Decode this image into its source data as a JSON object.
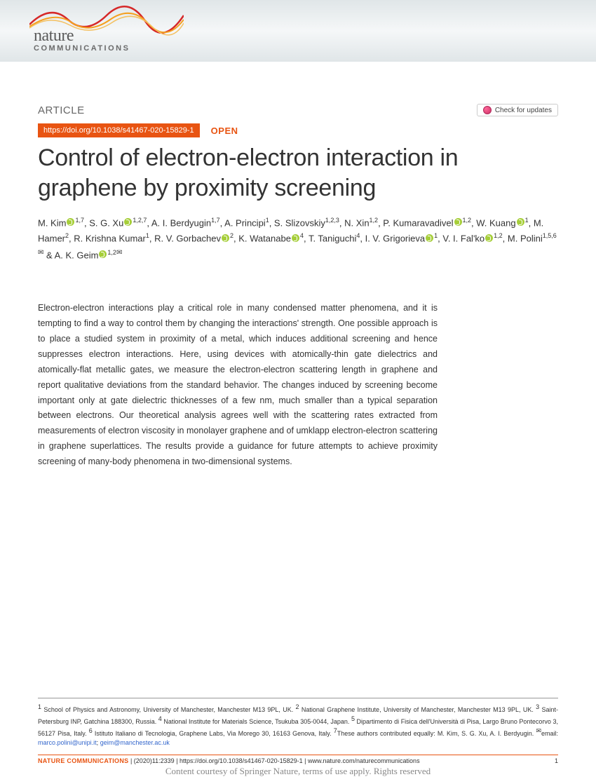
{
  "brand": {
    "name": "nature",
    "sub": "COMMUNICATIONS"
  },
  "header": {
    "article_label": "ARTICLE",
    "check_updates": "Check for updates",
    "doi": "https://doi.org/10.1038/s41467-020-15829-1",
    "open": "OPEN"
  },
  "title": "Control of electron-electron interaction in graphene by proximity screening",
  "authors_html": "M. Kim<orc/><sup>1,7</sup>, S. G. Xu<orc/><sup>1,2,7</sup>, A. I. Berdyugin<sup>1,7</sup>, A. Principi<sup>1</sup>, S. Slizovskiy<sup>1,2,3</sup>, N. Xin<sup>1,2</sup>, P. Kumaravadivel<orc/><sup>1,2</sup>, W. Kuang<orc/><sup>1</sup>, M. Hamer<sup>2</sup>, R. Krishna Kumar<sup>1</sup>, R. V. Gorbachev<orc/><sup>2</sup>, K. Watanabe<orc/><sup>4</sup>, T. Taniguchi<sup>4</sup>, I. V. Grigorieva<orc/><sup>1</sup>, V. I. Fal'ko<orc/><sup>1,2</sup>, M. Polini<sup>1,5,6</sup><mail/> & A. K. Geim<orc/><sup>1,2</sup><mail/>",
  "abstract": "Electron-electron interactions play a critical role in many condensed matter phenomena, and it is tempting to find a way to control them by changing the interactions' strength. One possible approach is to place a studied system in proximity of a metal, which induces additional screening and hence suppresses electron interactions. Here, using devices with atomically-thin gate dielectrics and atomically-flat metallic gates, we measure the electron-electron scattering length in graphene and report qualitative deviations from the standard behavior. The changes induced by screening become important only at gate dielectric thicknesses of a few nm, much smaller than a typical separation between electrons. Our theoretical analysis agrees well with the scattering rates extracted from measurements of electron viscosity in monolayer graphene and of umklapp electron-electron scattering in graphene superlattices. The results provide a guidance for future attempts to achieve proximity screening of many-body phenomena in two-dimensional systems.",
  "affiliations": "<sup>1</sup> School of Physics and Astronomy, University of Manchester, Manchester M13 9PL, UK. <sup>2</sup> National Graphene Institute, University of Manchester, Manchester M13 9PL, UK. <sup>3</sup> Saint-Petersburg INP, Gatchina 188300, Russia. <sup>4</sup> National Institute for Materials Science, Tsukuba 305-0044, Japan. <sup>5</sup> Dipartimento di Fisica dell'Università di Pisa, Largo Bruno Pontecorvo 3, 56127 Pisa, Italy. <sup>6</sup> Istituto Italiano di Tecnologia, Graphene Labs, Via Morego 30, 16163 Genova, Italy. <sup>7</sup>These authors contributed equally: M. Kim, S. G. Xu, A. I. Berdyugin. <sup>✉</sup>email: ",
  "emails": [
    "marco.polini@unipi.it",
    "geim@manchester.ac.uk"
  ],
  "footer": {
    "journal": "NATURE COMMUNICATIONS",
    "citation": " |  (2020)11:2339 | https://doi.org/10.1038/s41467-020-15829-1 | www.nature.com/naturecommunications",
    "page": "1"
  },
  "courtesy": "Content courtesy of Springer Nature, terms of use apply. Rights reserved",
  "colors": {
    "accent": "#e85412",
    "link": "#3366cc",
    "orcid": "#a6ce39"
  }
}
